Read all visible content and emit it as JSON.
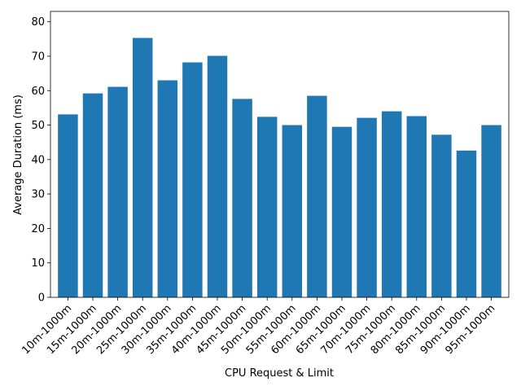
{
  "chart_data": {
    "type": "bar",
    "title": "",
    "xlabel": "CPU Request & Limit",
    "ylabel": "Average Duration (ms)",
    "ylim": [
      0,
      83
    ],
    "yticks": [
      0,
      10,
      20,
      30,
      40,
      50,
      60,
      70,
      80
    ],
    "bar_color": "#1f77b4",
    "grid": false,
    "categories": [
      "10m-1000m",
      "15m-1000m",
      "20m-1000m",
      "25m-1000m",
      "30m-1000m",
      "35m-1000m",
      "40m-1000m",
      "45m-1000m",
      "50m-1000m",
      "55m-1000m",
      "60m-1000m",
      "65m-1000m",
      "70m-1000m",
      "75m-1000m",
      "80m-1000m",
      "85m-1000m",
      "90m-1000m",
      "95m-1000m"
    ],
    "values": [
      53.1,
      59.2,
      61.1,
      75.3,
      63.0,
      68.2,
      70.1,
      57.6,
      52.4,
      50.0,
      58.5,
      49.5,
      52.1,
      54.0,
      52.6,
      47.2,
      42.6,
      50.0
    ]
  }
}
